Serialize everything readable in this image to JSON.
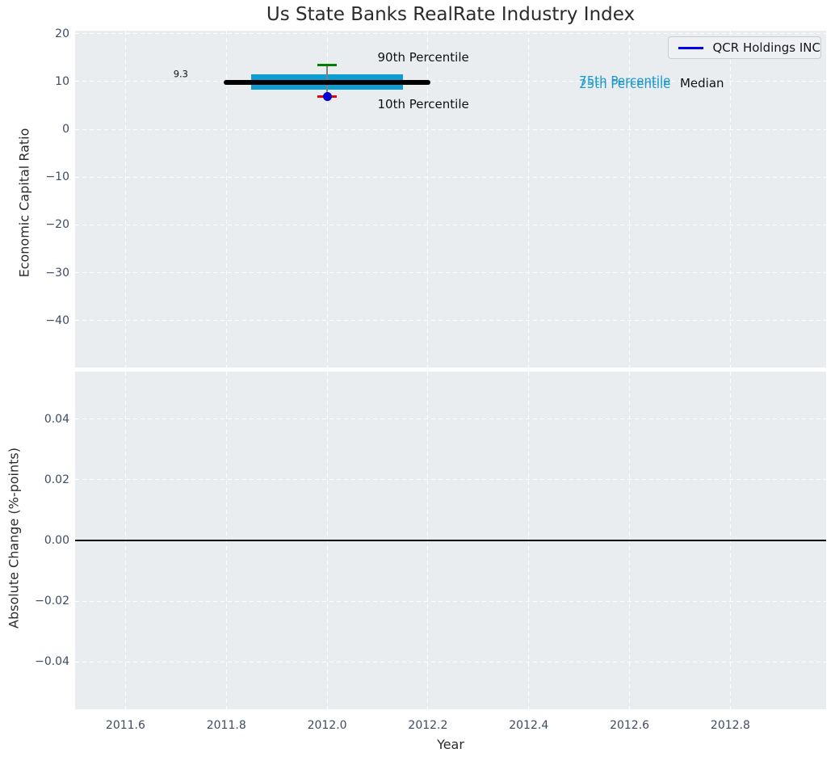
{
  "colors": {
    "plot_bg": "#e9edef",
    "grid": "#ffffff",
    "tick_label": "#3d4c63",
    "text": "#2b2b2b",
    "box_fill": "#0d9dd1",
    "percentile_text": "#1b99cd",
    "median_line": "#000000",
    "p90_cap": "#007f00",
    "p10_cap": "#ee0000",
    "whisker": "#7f7f7f",
    "company_dot": "#0000cc",
    "legend_line": "#0000ee",
    "zero_line": "#000000"
  },
  "chart_data": [
    {
      "type": "boxplot",
      "title": "Us State Banks RealRate Industry Index",
      "ylabel": "Economic Capital Ratio",
      "xlabel": "",
      "xlim": [
        2011.5,
        2012.99
      ],
      "ylim": [
        -49.8,
        20.6
      ],
      "grid": "white dashed on light gray",
      "legend": {
        "entries": [
          "QCR Holdings INC"
        ],
        "position": "upper right"
      },
      "yticks": [
        {
          "v": 20,
          "label": "20"
        },
        {
          "v": 10,
          "label": "10"
        },
        {
          "v": 0,
          "label": "0"
        },
        {
          "v": -10,
          "label": "−10"
        },
        {
          "v": -20,
          "label": "−20"
        },
        {
          "v": -30,
          "label": "−30"
        },
        {
          "v": -40,
          "label": "−40"
        }
      ],
      "xtick_values": [
        2011.6,
        2011.8,
        2012.0,
        2012.2,
        2012.4,
        2012.6,
        2012.8
      ],
      "box": {
        "x": 2012.0,
        "p90": 13.4,
        "p75": 11.5,
        "median": 9.3,
        "p25": 8.2,
        "p10": 6.8,
        "median_label": "9.3",
        "median_line_y": 9.85,
        "median_line_span": [
          2011.795,
          2012.205
        ],
        "box_span": [
          2011.85,
          2012.15
        ],
        "company": {
          "name": "QCR Holdings INC",
          "x": 2012.0,
          "y": 6.8
        }
      },
      "annotations": [
        {
          "text": "90th Percentile",
          "x": 2012.1,
          "y": 15.0,
          "color": "#111111",
          "size": 15
        },
        {
          "text": "10th Percentile",
          "x": 2012.1,
          "y": 5.2,
          "color": "#111111",
          "size": 15
        },
        {
          "text": "75th Percentile",
          "x": 2012.5,
          "y": 10.1,
          "color": "#1b99cd",
          "size": 15
        },
        {
          "text": "25th Percentile",
          "x": 2012.5,
          "y": 9.4,
          "color": "#1b99cd",
          "size": 15
        },
        {
          "text": "Median",
          "x": 2012.7,
          "y": 9.55,
          "color": "#111111",
          "size": 15
        },
        {
          "text": "9.3",
          "x": 2011.695,
          "y": 11.55,
          "color": "#111111",
          "size": 11.5
        }
      ]
    },
    {
      "type": "line",
      "title": "",
      "ylabel": "Absolute Change (%-points)",
      "xlabel": "Year",
      "xlim": [
        2011.5,
        2012.99
      ],
      "ylim": [
        -0.0557,
        0.0557
      ],
      "grid": "white dashed on light gray",
      "yticks": [
        {
          "v": 0.04,
          "label": "0.04"
        },
        {
          "v": 0.02,
          "label": "0.02"
        },
        {
          "v": 0.0,
          "label": "0.00"
        },
        {
          "v": -0.02,
          "label": "−0.02"
        },
        {
          "v": -0.04,
          "label": "−0.04"
        }
      ],
      "xticks": [
        {
          "v": 2011.6,
          "label": "2011.6"
        },
        {
          "v": 2011.8,
          "label": "2011.8"
        },
        {
          "v": 2012.0,
          "label": "2012.0"
        },
        {
          "v": 2012.2,
          "label": "2012.2"
        },
        {
          "v": 2012.4,
          "label": "2012.4"
        },
        {
          "v": 2012.6,
          "label": "2012.6"
        },
        {
          "v": 2012.8,
          "label": "2012.8"
        }
      ],
      "zero_line_y": 0.0,
      "series": []
    }
  ]
}
